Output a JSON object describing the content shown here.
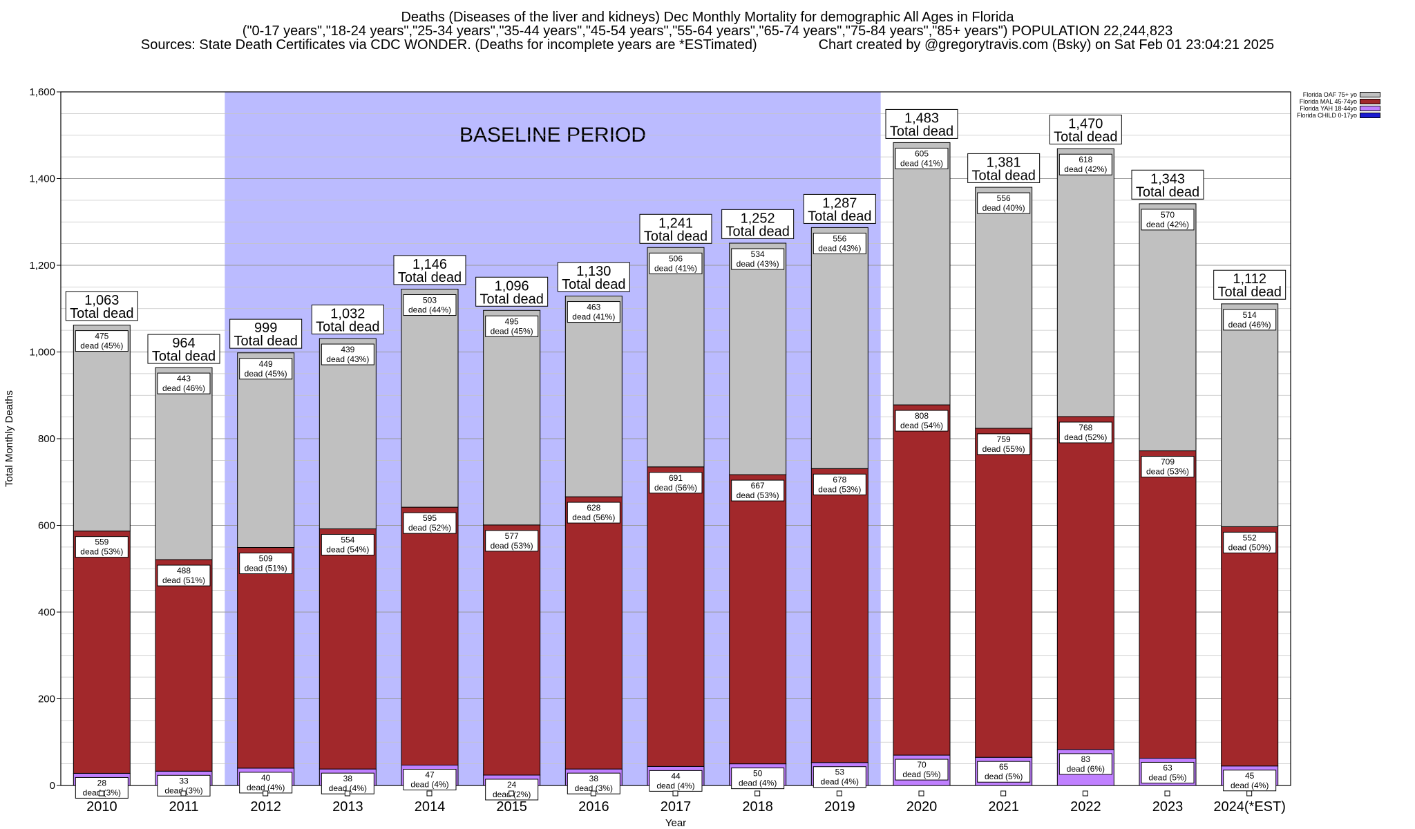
{
  "header": {
    "line1": "Deaths (Diseases of the liver and kidneys) Dec Monthly Mortality for demographic All Ages in Florida",
    "line2": "(\"0-17 years\",\"18-24 years\",\"25-34 years\",\"35-44 years\",\"45-54 years\",\"55-64 years\",\"65-74 years\",\"75-84 years\",\"85+ years\") POPULATION 22,244,823",
    "line3": "Sources: State Death Certificates via CDC WONDER. (Deaths for incomplete years are *ESTimated)                Chart created by @gregorytravis.com (Bsky) on Sat Feb 01 23:04:21 2025"
  },
  "legend": [
    {
      "label": "Florida OAF 75+ yo",
      "color": "#c0c0c0"
    },
    {
      "label": "Florida MAL 45-74yo",
      "color": "#a2282b"
    },
    {
      "label": "Florida YAH 18-44yo",
      "color": "#c080ff"
    },
    {
      "label": "Florida CHILD 0-17yo",
      "color": "#1a1ad0"
    }
  ],
  "chart_data": {
    "type": "bar",
    "stacked": true,
    "xlabel": "Year",
    "ylabel": "Total Monthly Deaths",
    "ylim": [
      0,
      1600
    ],
    "yticks": [
      0,
      200,
      400,
      600,
      800,
      1000,
      1200,
      1400,
      1600
    ],
    "ytick_labels": [
      "0",
      "200",
      "400",
      "600",
      "800",
      "1,000",
      "1,200",
      "1,400",
      "1,600"
    ],
    "grid": true,
    "legend_position": "top-right",
    "categories": [
      "2010",
      "2011",
      "2012",
      "2013",
      "2014",
      "2015",
      "2016",
      "2017",
      "2018",
      "2019",
      "2020",
      "2021",
      "2022",
      "2023",
      "2024(*EST)"
    ],
    "baseline_region": {
      "label": "BASELINE PERIOD",
      "from": "2012",
      "to": "2019",
      "color": "#bbbbff"
    },
    "series": [
      {
        "name": "Florida CHILD 0-17yo",
        "color": "#1a1ad0",
        "values": [
          0,
          0,
          0,
          0,
          0,
          0,
          0,
          0,
          0,
          0,
          0,
          0,
          0,
          0,
          0
        ]
      },
      {
        "name": "Florida YAH 18-44yo",
        "color": "#c080ff",
        "values": [
          28,
          33,
          40,
          38,
          47,
          24,
          38,
          44,
          50,
          53,
          70,
          65,
          83,
          63,
          45
        ],
        "labels": [
          "28",
          "33",
          "40",
          "38",
          "47",
          "24",
          "38",
          "44",
          "50",
          "53",
          "70",
          "65",
          "83",
          "63",
          "45"
        ],
        "pct_labels": [
          "dead (3%)",
          "dead (3%)",
          "dead (4%)",
          "dead (4%)",
          "dead (4%)",
          "dead (2%)",
          "dead (3%)",
          "dead (4%)",
          "dead (4%)",
          "dead (4%)",
          "dead (5%)",
          "dead (5%)",
          "dead (6%)",
          "dead (5%)",
          "dead (4%)"
        ]
      },
      {
        "name": "Florida MAL 45-74yo",
        "color": "#a2282b",
        "values": [
          559,
          488,
          509,
          554,
          595,
          577,
          628,
          691,
          667,
          678,
          808,
          759,
          768,
          709,
          552
        ],
        "labels": [
          "559",
          "488",
          "509",
          "554",
          "595",
          "577",
          "628",
          "691",
          "667",
          "678",
          "808",
          "759",
          "768",
          "709",
          "552"
        ],
        "pct_labels": [
          "dead (53%)",
          "dead (51%)",
          "dead (51%)",
          "dead (54%)",
          "dead (52%)",
          "dead (53%)",
          "dead (56%)",
          "dead (56%)",
          "dead (53%)",
          "dead (53%)",
          "dead (54%)",
          "dead (55%)",
          "dead (52%)",
          "dead (53%)",
          "dead (50%)"
        ]
      },
      {
        "name": "Florida OAF 75+ yo",
        "color": "#c0c0c0",
        "values": [
          475,
          443,
          449,
          439,
          503,
          495,
          463,
          506,
          534,
          556,
          605,
          556,
          618,
          570,
          514
        ],
        "labels": [
          "475",
          "443",
          "449",
          "439",
          "503",
          "495",
          "463",
          "506",
          "534",
          "556",
          "605",
          "556",
          "618",
          "570",
          "514"
        ],
        "pct_labels": [
          "dead (45%)",
          "dead (46%)",
          "dead (45%)",
          "dead (43%)",
          "dead (44%)",
          "dead (45%)",
          "dead (41%)",
          "dead (41%)",
          "dead (43%)",
          "dead (43%)",
          "dead (41%)",
          "dead (40%)",
          "dead (42%)",
          "dead (42%)",
          "dead (46%)"
        ]
      }
    ],
    "totals": [
      1063,
      964,
      999,
      1032,
      1146,
      1096,
      1130,
      1241,
      1252,
      1287,
      1483,
      1381,
      1470,
      1343,
      1112
    ],
    "total_labels": [
      "1,063",
      "964",
      "999",
      "1,032",
      "1,146",
      "1,096",
      "1,130",
      "1,241",
      "1,252",
      "1,287",
      "1,483",
      "1,381",
      "1,470",
      "1,343",
      "1,112"
    ],
    "total_caption": "Total dead"
  }
}
